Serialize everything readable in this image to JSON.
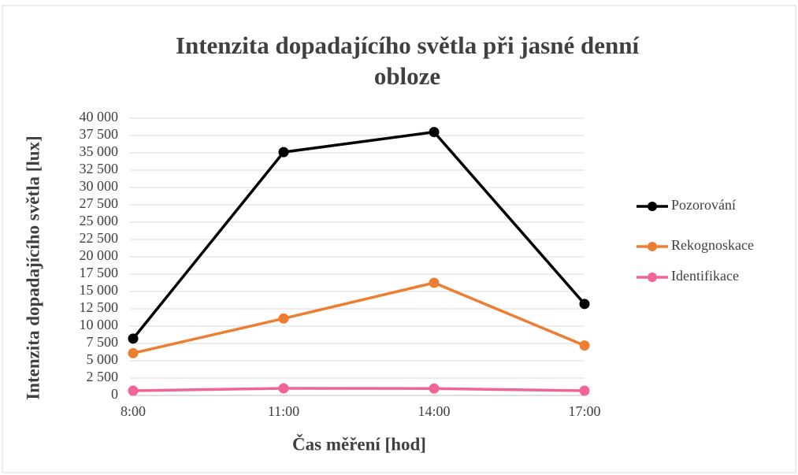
{
  "chart_data": {
    "type": "line",
    "title": [
      "Intenzita dopadajícího světla při jasné denní",
      "obloze"
    ],
    "x_label": "Čas měření [hod]",
    "y_label": "Intenzita dopadajícího světla [lux]",
    "categories": [
      "8:00",
      "11:00",
      "14:00",
      "17:00"
    ],
    "series": [
      {
        "name": "Pozorování",
        "color": "#000000",
        "values": [
          8200,
          35100,
          38000,
          13200
        ]
      },
      {
        "name": "Rekognoskace",
        "color": "#ed7d31",
        "values": [
          6100,
          11100,
          16250,
          7200
        ]
      },
      {
        "name": "Identifikace",
        "color": "#f0649a",
        "values": [
          680,
          1020,
          1000,
          680
        ]
      }
    ],
    "ylim": [
      0,
      40000
    ],
    "yticks": [
      0,
      {
        "value": 2500,
        "label": "2 500"
      },
      {
        "value": 5000,
        "label": "5 000"
      },
      {
        "value": 7500,
        "label": "7 500"
      },
      {
        "value": 10000,
        "label": "10 000"
      },
      {
        "value": 12500,
        "label": "12 500"
      },
      {
        "value": 15000,
        "label": "15 000"
      },
      {
        "value": 17500,
        "label": "17 500"
      },
      {
        "value": 20000,
        "label": "20 000"
      },
      {
        "value": 22500,
        "label": "22 500"
      },
      {
        "value": 25000,
        "label": "25 000"
      },
      {
        "value": 27500,
        "label": "27 500"
      },
      {
        "value": 30000,
        "label": "30 000"
      },
      {
        "value": 32500,
        "label": "32 500"
      },
      {
        "value": 35000,
        "label": "35 000"
      },
      {
        "value": 37500,
        "label": "37 500"
      },
      {
        "value": 40000,
        "label": "40 000"
      }
    ],
    "grid": true,
    "legend": "right"
  }
}
